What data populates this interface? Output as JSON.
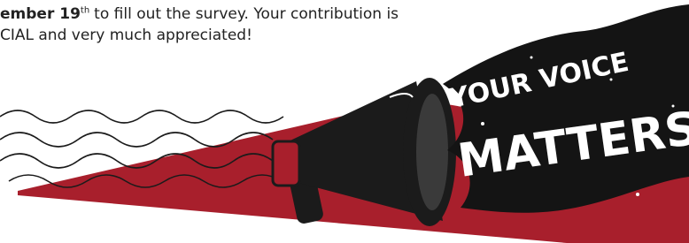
{
  "text": {
    "line1": {
      "bold": "ember 19",
      "sup": "th",
      "rest": "to fill out the survey. Your contribution is"
    },
    "line2": "CIAL and very much appreciated!"
  },
  "graphic": {
    "line1": "YOUR VOICE",
    "line2": "MATTERS"
  }
}
